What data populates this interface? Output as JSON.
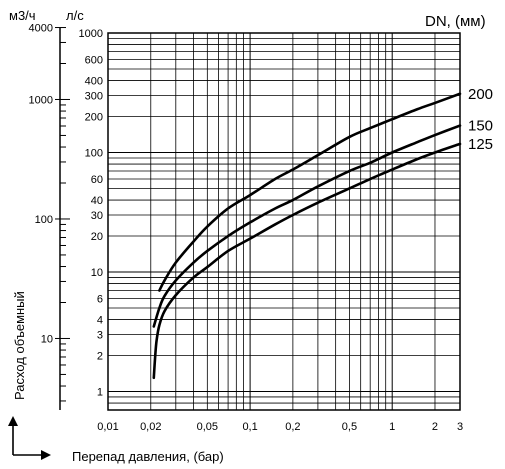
{
  "chart_data": {
    "type": "line",
    "scale": "log-log",
    "grid": true,
    "xlabel": "Перепад давления, (бар)",
    "ylabel": "Расход объемный",
    "left_unit": "м3/ч",
    "right_unit": "л/с",
    "legend_title": "DN, (мм)",
    "xlim": [
      0.01,
      3
    ],
    "ylim_ls": [
      0.7,
      1000
    ],
    "ylim_m3h": [
      2.52,
      3600
    ],
    "x_ticks": [
      {
        "value": 0.01,
        "label": "0,01"
      },
      {
        "value": 0.02,
        "label": "0,02"
      },
      {
        "value": 0.05,
        "label": "0,05"
      },
      {
        "value": 0.1,
        "label": "0,1"
      },
      {
        "value": 0.2,
        "label": "0,2"
      },
      {
        "value": 0.5,
        "label": "0,5"
      },
      {
        "value": 1,
        "label": "1"
      },
      {
        "value": 2,
        "label": "2"
      },
      {
        "value": 3,
        "label": "3"
      }
    ],
    "y_ticks_ls": [
      {
        "value": 1,
        "label": "1"
      },
      {
        "value": 2,
        "label": "2"
      },
      {
        "value": 3,
        "label": "3"
      },
      {
        "value": 4,
        "label": "4"
      },
      {
        "value": 6,
        "label": "6"
      },
      {
        "value": 10,
        "label": "10"
      },
      {
        "value": 20,
        "label": "20"
      },
      {
        "value": 30,
        "label": "30"
      },
      {
        "value": 40,
        "label": "40"
      },
      {
        "value": 60,
        "label": "60"
      },
      {
        "value": 100,
        "label": "100"
      },
      {
        "value": 200,
        "label": "200"
      },
      {
        "value": 300,
        "label": "300"
      },
      {
        "value": 400,
        "label": "400"
      },
      {
        "value": 600,
        "label": "600"
      },
      {
        "value": 1000,
        "label": "1000"
      }
    ],
    "y_ticks_m3h": [
      {
        "value": 10,
        "label": "10"
      },
      {
        "value": 100,
        "label": "100"
      },
      {
        "value": 1000,
        "label": "1000"
      },
      {
        "value": 4000,
        "label": "4000"
      }
    ],
    "series": [
      {
        "name": "200",
        "x": [
          0.023,
          0.025,
          0.03,
          0.04,
          0.05,
          0.07,
          0.1,
          0.15,
          0.2,
          0.3,
          0.5,
          0.7,
          1,
          1.5,
          2,
          3
        ],
        "y": [
          7,
          8.5,
          12,
          18,
          24,
          34,
          44,
          60,
          72,
          95,
          135,
          160,
          190,
          230,
          260,
          310
        ]
      },
      {
        "name": "150",
        "x": [
          0.021,
          0.023,
          0.025,
          0.03,
          0.04,
          0.05,
          0.07,
          0.1,
          0.15,
          0.2,
          0.3,
          0.5,
          0.7,
          1,
          1.5,
          2,
          3
        ],
        "y": [
          3.5,
          5,
          6.3,
          8.5,
          12,
          15,
          20,
          26,
          34,
          40,
          52,
          70,
          82,
          100,
          122,
          140,
          168
        ]
      },
      {
        "name": "125",
        "x": [
          0.021,
          0.0215,
          0.022,
          0.023,
          0.025,
          0.03,
          0.04,
          0.05,
          0.07,
          0.1,
          0.15,
          0.2,
          0.3,
          0.5,
          0.7,
          1,
          1.5,
          2,
          3
        ],
        "y": [
          1.3,
          2,
          2.7,
          3.6,
          4.7,
          6.4,
          9,
          11,
          15,
          19,
          25,
          30,
          38,
          50,
          60,
          72,
          88,
          100,
          118
        ]
      }
    ]
  }
}
